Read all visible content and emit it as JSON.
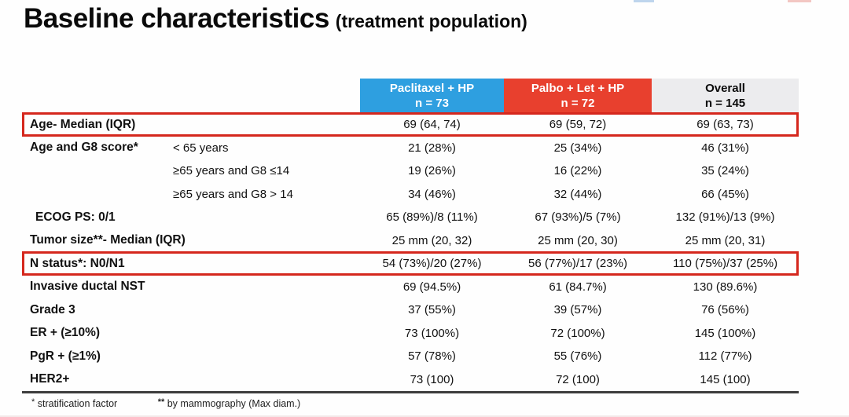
{
  "title": {
    "main": "Baseline characteristics",
    "sub": "(treatment population)"
  },
  "table": {
    "columns": [
      {
        "label": "Paclitaxel + HP",
        "n": "n = 73"
      },
      {
        "label": "Palbo + Let + HP",
        "n": "n = 72"
      },
      {
        "label": "Overall",
        "n": "n = 145"
      }
    ],
    "rows": [
      {
        "label": "Age- Median (IQR)",
        "sublabel": "",
        "values": [
          "69 (64, 74)",
          "69 (59, 72)",
          "69 (63, 73)"
        ],
        "highlighted": true
      },
      {
        "label": "Age and G8 score*",
        "sublabel": "< 65 years",
        "values": [
          "21 (28%)",
          "25 (34%)",
          "46 (31%)"
        ],
        "highlighted": false
      },
      {
        "label": "",
        "sublabel": "≥65 years and G8 ≤14",
        "values": [
          "19 (26%)",
          "16 (22%)",
          "35 (24%)"
        ],
        "highlighted": false
      },
      {
        "label": "",
        "sublabel": "≥65 years and G8 > 14",
        "values": [
          "34 (46%)",
          "32 (44%)",
          "66 (45%)"
        ],
        "highlighted": false
      },
      {
        "label": "ECOG PS:  0/1",
        "sublabel": "",
        "values": [
          "65 (89%)/8 (11%)",
          "67 (93%)/5 (7%)",
          "132 (91%)/13 (9%)"
        ],
        "highlighted": false
      },
      {
        "label": "Tumor size**- Median (IQR)",
        "sublabel": "",
        "values": [
          "25 mm (20, 32)",
          "25 mm (20, 30)",
          "25 mm (20, 31)"
        ],
        "highlighted": false
      },
      {
        "label": "N status*: N0/N1",
        "sublabel": "",
        "values": [
          "54 (73%)/20 (27%)",
          "56 (77%)/17 (23%)",
          "110 (75%)/37 (25%)"
        ],
        "highlighted": true
      },
      {
        "label": "Invasive ductal NST",
        "sublabel": "",
        "values": [
          "69 (94.5%)",
          "61 (84.7%)",
          "130 (89.6%)"
        ],
        "highlighted": false
      },
      {
        "label": "Grade 3",
        "sublabel": "",
        "values": [
          "37 (55%)",
          "39 (57%)",
          "76 (56%)"
        ],
        "highlighted": false
      },
      {
        "label": "ER + (≥10%)",
        "sublabel": "",
        "values": [
          "73 (100%)",
          "72 (100%)",
          "145 (100%)"
        ],
        "highlighted": false
      },
      {
        "label": "PgR + (≥1%)",
        "sublabel": "",
        "values": [
          "57 (78%)",
          "55 (76%)",
          "112 (77%)"
        ],
        "highlighted": false
      },
      {
        "label": "HER2+",
        "sublabel": "",
        "values": [
          "73 (100)",
          "72 (100)",
          "145 (100)"
        ],
        "highlighted": false
      }
    ]
  },
  "footnotes": [
    {
      "marker": "*",
      "text": "stratification factor"
    },
    {
      "marker": "**",
      "text": "by mammography (Max diam.)"
    }
  ],
  "colors": {
    "col1_bg": "#2e9fe0",
    "col2_bg": "#e8402e",
    "col3_bg": "#ececee",
    "highlight_border": "#d5271d",
    "bottom_line": "#3d3d3d"
  }
}
